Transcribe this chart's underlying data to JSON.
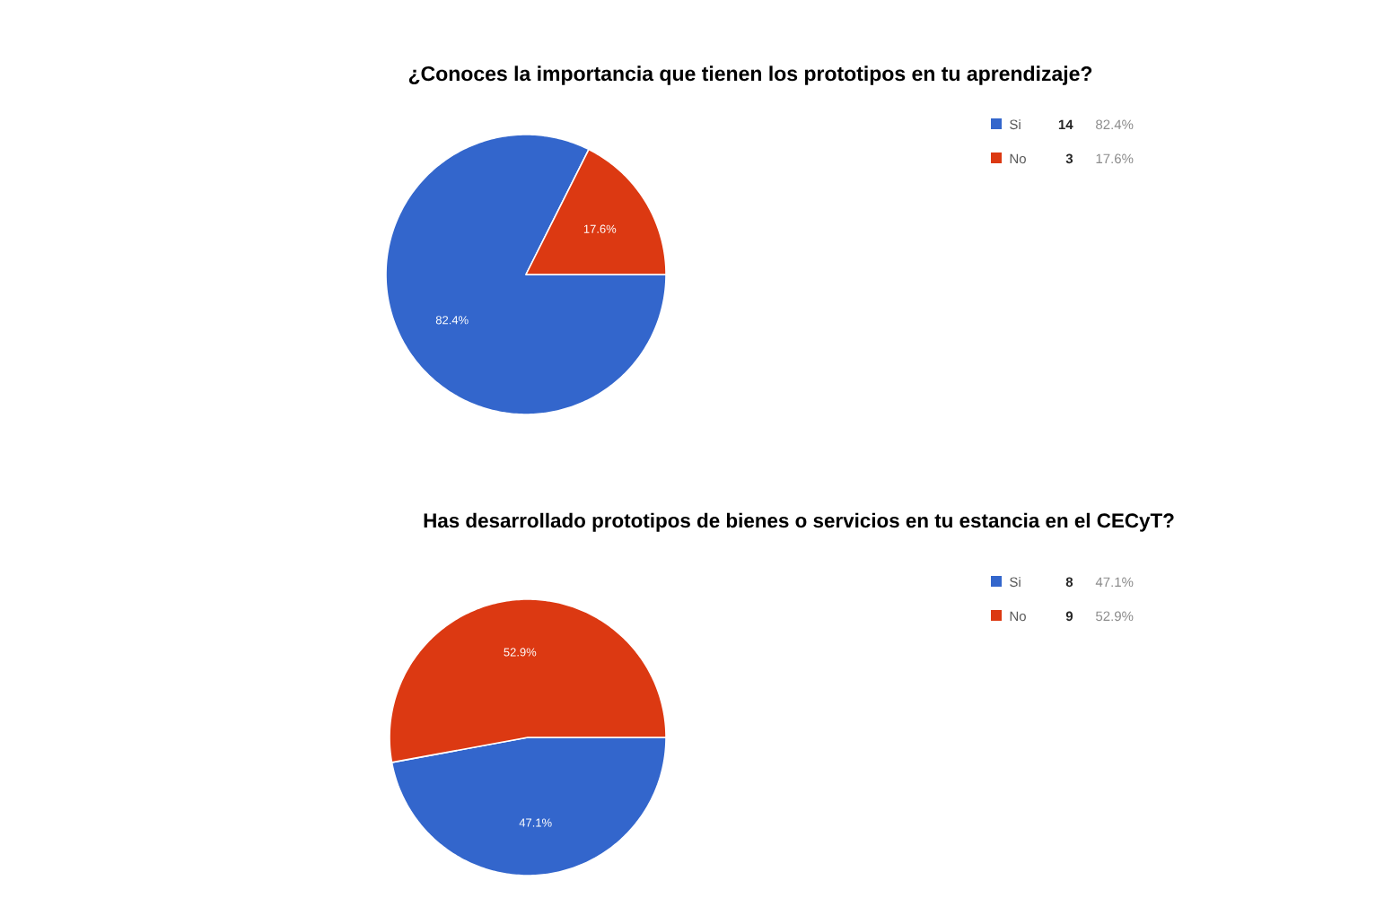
{
  "chart_data": [
    {
      "type": "pie",
      "title": "¿Conoces la importancia que tienen los prototipos en tu aprendizaje?",
      "categories": [
        "Si",
        "No"
      ],
      "values": [
        82.4,
        17.6
      ],
      "value_labels": [
        "82.4%",
        "17.6%"
      ],
      "colors": [
        "#3366cc",
        "#dc3912"
      ],
      "legend": "top right",
      "annotations": [
        "14",
        "3"
      ]
    },
    {
      "type": "pie",
      "title": "Has desarrollado prototipos de bienes o servicios en tu estancia en el CECyT?",
      "categories": [
        "Si",
        "No"
      ],
      "values": [
        47.1,
        52.9
      ],
      "value_labels": [
        "47.1%",
        "52.9%"
      ],
      "colors": [
        "#3366cc",
        "#dc3912"
      ],
      "legend": "top right",
      "annotations": [
        "8",
        "9"
      ]
    }
  ]
}
